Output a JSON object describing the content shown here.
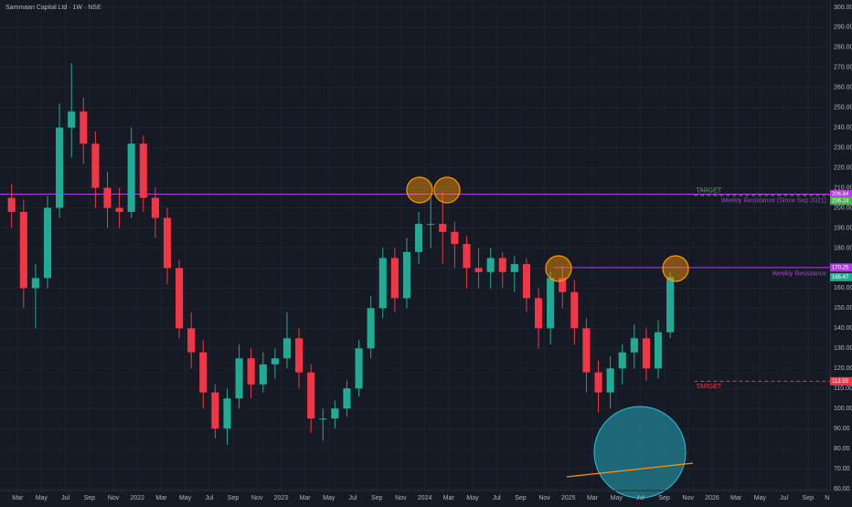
{
  "chart_data": {
    "type": "candlestick",
    "title": "Sammaan Capital Ltd · 1W · NSE",
    "x": [
      1.5,
      2.5,
      3.5,
      4.5,
      5.5,
      6.5,
      7.5,
      8.5,
      9.5,
      10.5,
      11.5,
      12.5,
      13.5,
      14.5,
      15.5,
      16.5,
      17.5,
      18.5,
      19.5,
      20.5,
      21.5,
      22.5,
      23.5,
      24.5,
      25.5,
      26.5,
      27.5,
      28.5,
      29.5,
      30.5,
      31.5,
      32.5,
      33.5,
      34.5,
      35.5,
      36.5,
      37.5,
      38.5,
      39.5,
      40.5,
      41.5,
      42.5,
      43.5,
      44.5,
      45.5,
      46.5,
      47.5,
      48.5,
      49.5,
      50.5,
      51.5,
      52.5,
      53.5,
      54.5,
      55.5,
      56.5
    ],
    "open": [
      205,
      198,
      160,
      165,
      200,
      240,
      248,
      232,
      210,
      200,
      198,
      232,
      205,
      195,
      170,
      140,
      128,
      108,
      90,
      105,
      125,
      112,
      122,
      125,
      135,
      118,
      95,
      95,
      100,
      110,
      130,
      150,
      175,
      155,
      178,
      192,
      192,
      188,
      182,
      170,
      168,
      175,
      168,
      172,
      155,
      140,
      165,
      158,
      140,
      118,
      108,
      120,
      128,
      135,
      120,
      138
    ],
    "high": [
      212,
      204,
      172,
      206,
      252,
      272,
      255,
      238,
      218,
      210,
      240,
      236,
      210,
      200,
      174,
      148,
      134,
      112,
      110,
      132,
      130,
      128,
      130,
      148,
      140,
      122,
      100,
      104,
      114,
      134,
      156,
      180,
      180,
      185,
      198,
      206,
      208,
      193,
      186,
      180,
      180,
      178,
      176,
      175,
      160,
      168,
      171,
      164,
      145,
      124,
      126,
      132,
      142,
      140,
      144,
      168
    ],
    "low": [
      190,
      150,
      140,
      160,
      195,
      225,
      222,
      200,
      190,
      190,
      195,
      198,
      185,
      162,
      135,
      120,
      100,
      85,
      82,
      100,
      105,
      108,
      115,
      120,
      110,
      88,
      84,
      90,
      96,
      106,
      125,
      145,
      148,
      150,
      172,
      180,
      172,
      170,
      160,
      160,
      160,
      160,
      158,
      148,
      130,
      132,
      150,
      132,
      108,
      98,
      100,
      112,
      120,
      114,
      115,
      135
    ],
    "close": [
      198,
      160,
      165,
      200,
      240,
      248,
      232,
      210,
      200,
      198,
      232,
      205,
      195,
      170,
      140,
      128,
      108,
      90,
      105,
      125,
      112,
      122,
      125,
      135,
      118,
      95,
      95,
      100,
      110,
      130,
      150,
      175,
      155,
      178,
      192,
      192,
      188,
      182,
      170,
      168,
      175,
      168,
      172,
      155,
      140,
      165,
      158,
      140,
      118,
      108,
      120,
      128,
      135,
      120,
      138,
      165.47
    ],
    "up_color": "#22ab94",
    "down_color": "#f23645",
    "levels": [
      {
        "name": "Weekly Resistance (Since Sep 2021)",
        "value": 206.84,
        "color": "#b03fe0",
        "start": 0.5
      },
      {
        "name": "Weekly Resistance",
        "value": 170.25,
        "color": "#b03fe0",
        "start": 46.8
      },
      {
        "name": "TARGET",
        "value": 206.24,
        "color": "#4caf50",
        "start": 58.5
      },
      {
        "name": "TARGET",
        "value": 113.59,
        "color": "#f23645",
        "start": 58.5
      }
    ],
    "xlim": [
      0.53,
      69.85
    ],
    "ylim": [
      59.1,
      303.6
    ],
    "xticks": [
      {
        "value": 2,
        "label": "Mar"
      },
      {
        "value": 4,
        "label": "May"
      },
      {
        "value": 6,
        "label": "Jul"
      },
      {
        "value": 8,
        "label": "Sep"
      },
      {
        "value": 10,
        "label": "Nov"
      },
      {
        "value": 12,
        "label": "2022"
      },
      {
        "value": 14,
        "label": "Mar"
      },
      {
        "value": 16,
        "label": "May"
      },
      {
        "value": 18,
        "label": "Jul"
      },
      {
        "value": 20,
        "label": "Sep"
      },
      {
        "value": 22,
        "label": "Nov"
      },
      {
        "value": 24,
        "label": "2023"
      },
      {
        "value": 26,
        "label": "Mar"
      },
      {
        "value": 28,
        "label": "May"
      },
      {
        "value": 30,
        "label": "Jul"
      },
      {
        "value": 32,
        "label": "Sep"
      },
      {
        "value": 34,
        "label": "Nov"
      },
      {
        "value": 36,
        "label": "2024"
      },
      {
        "value": 38,
        "label": "Mar"
      },
      {
        "value": 40,
        "label": "May"
      },
      {
        "value": 42,
        "label": "Jul"
      },
      {
        "value": 44,
        "label": "Sep"
      },
      {
        "value": 46,
        "label": "Nov"
      },
      {
        "value": 48,
        "label": "2025"
      },
      {
        "value": 50,
        "label": "Mar"
      },
      {
        "value": 52,
        "label": "May"
      },
      {
        "value": 54,
        "label": "Jul"
      },
      {
        "value": 56,
        "label": "Sep"
      },
      {
        "value": 58,
        "label": "Nov"
      },
      {
        "value": 60,
        "label": "2026"
      },
      {
        "value": 62,
        "label": "Mar"
      },
      {
        "value": 64,
        "label": "May"
      },
      {
        "value": 66,
        "label": "Jul"
      },
      {
        "value": 68,
        "label": "Sep"
      },
      {
        "value": 69.6,
        "label": "N"
      }
    ],
    "yticks": [
      {
        "value": 60,
        "label": "60.00"
      },
      {
        "value": 70,
        "label": "70.00"
      },
      {
        "value": 80,
        "label": "80.00"
      },
      {
        "value": 90,
        "label": "90.00"
      },
      {
        "value": 100,
        "label": "100.00"
      },
      {
        "value": 110,
        "label": "110.00"
      },
      {
        "value": 120,
        "label": "120.00"
      },
      {
        "value": 130,
        "label": "130.00"
      },
      {
        "value": 140,
        "label": "140.00"
      },
      {
        "value": 150,
        "label": "150.00"
      },
      {
        "value": 160,
        "label": "160.00"
      },
      {
        "value": 170,
        "label": "170.00"
      },
      {
        "value": 180,
        "label": "180.00"
      },
      {
        "value": 190,
        "label": "190.00"
      },
      {
        "value": 200,
        "label": "200.00"
      },
      {
        "value": 210,
        "label": "210.00"
      },
      {
        "value": 220,
        "label": "220.00"
      },
      {
        "value": 230,
        "label": "230.00"
      },
      {
        "value": 240,
        "label": "240.00"
      },
      {
        "value": 250,
        "label": "250.00"
      },
      {
        "value": 260,
        "label": "260.00"
      },
      {
        "value": 270,
        "label": "270.00"
      },
      {
        "value": 280,
        "label": "280.00"
      },
      {
        "value": 290,
        "label": "290.00"
      },
      {
        "value": 300,
        "label": "300.00"
      }
    ],
    "grid": true
  }
}
